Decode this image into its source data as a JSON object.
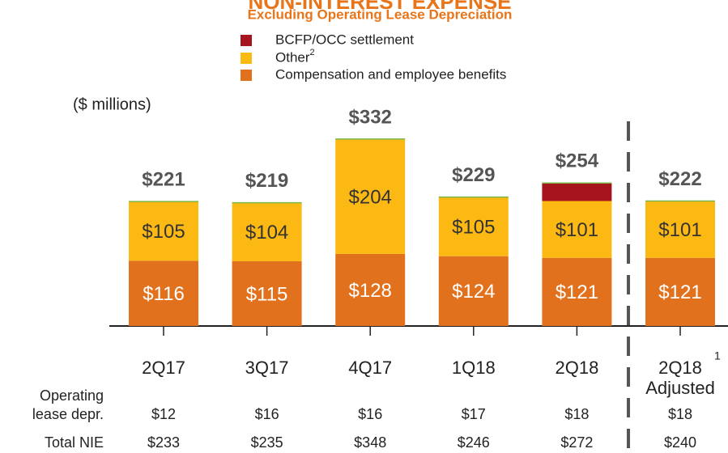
{
  "chart_data": {
    "type": "stacked_bar",
    "title": "NON-INTEREST EXPENSE",
    "subtitle": "Excluding Operating Lease Depreciation",
    "units_label": "($ millions)",
    "categories": [
      "2Q17",
      "3Q17",
      "4Q17",
      "1Q18",
      "2Q18",
      "2Q18"
    ],
    "category_notes": [
      null,
      null,
      null,
      null,
      null,
      "1"
    ],
    "category_sublabels": [
      null,
      null,
      null,
      null,
      null,
      "Adjusted"
    ],
    "series": [
      {
        "name": "Compensation and employee benefits",
        "color": "#e2711d",
        "values": [
          116,
          115,
          128,
          124,
          121,
          121
        ],
        "value_labels": [
          "$116",
          "$115",
          "$128",
          "$124",
          "$121",
          "$121"
        ]
      },
      {
        "name": "Other",
        "name_note": "2",
        "color": "#fdb913",
        "values": [
          105,
          104,
          204,
          105,
          101,
          101
        ],
        "value_labels": [
          "$105",
          "$104",
          "$204",
          "$105",
          "$101",
          "$101"
        ]
      },
      {
        "name": "BCFP/OCC settlement",
        "color": "#a6141d",
        "values": [
          null,
          null,
          null,
          null,
          32,
          null
        ]
      }
    ],
    "totals": {
      "values": [
        221,
        219,
        332,
        229,
        254,
        222
      ],
      "value_labels": [
        "$221",
        "$219",
        "$332",
        "$229",
        "$254",
        "$222"
      ]
    },
    "table": {
      "rows": [
        {
          "label": [
            "Operating",
            "lease depr."
          ],
          "values": [
            "$12",
            "$16",
            "$16",
            "$17",
            "$18",
            "$18"
          ]
        },
        {
          "label": [
            "Total NIE"
          ],
          "values": [
            "$233",
            "$235",
            "$348",
            "$246",
            "$272",
            "$240"
          ]
        }
      ]
    }
  }
}
